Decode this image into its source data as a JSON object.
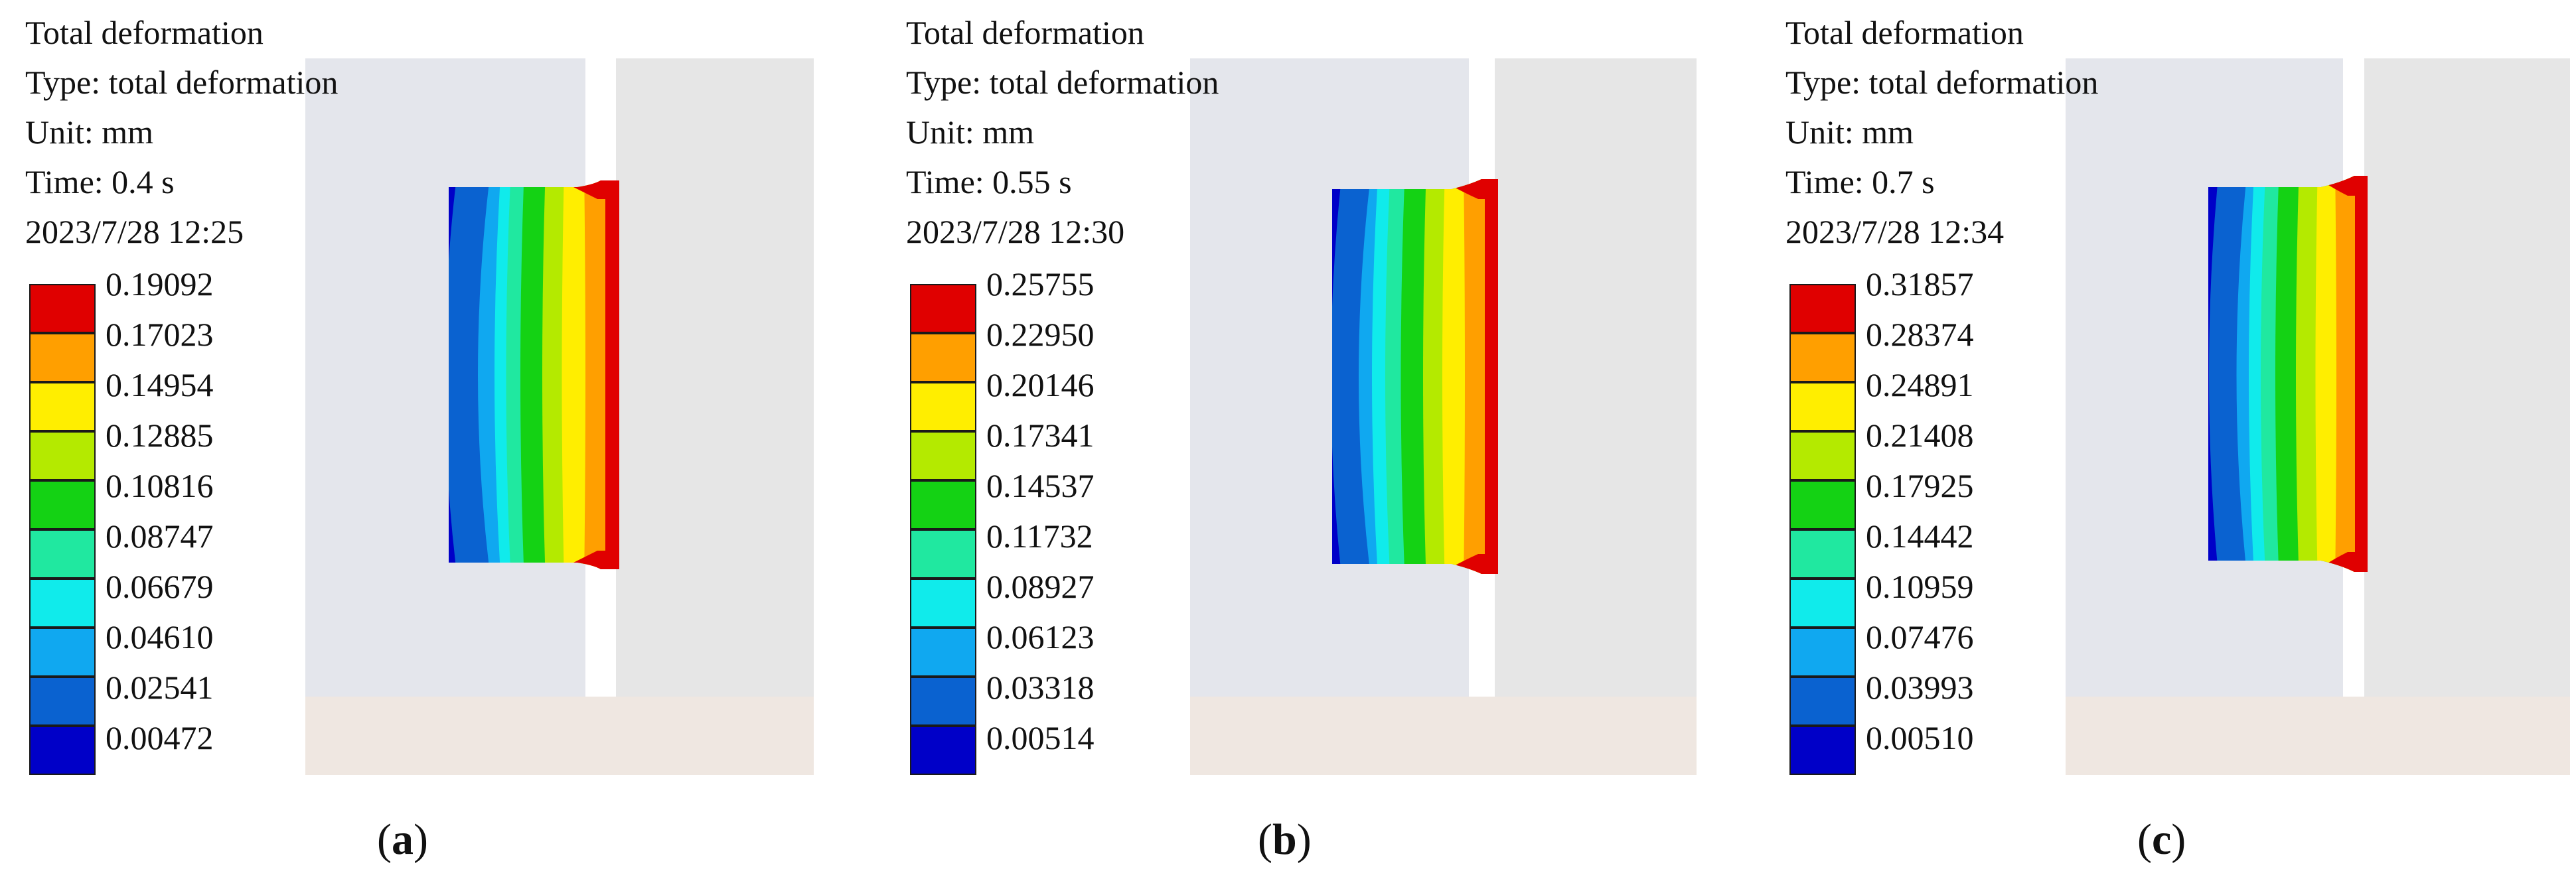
{
  "panels": [
    {
      "title": "Total deformation",
      "type": "Type: total deformation",
      "unit": "Unit: mm",
      "time": "Time: 0.4 s",
      "date": "2023/7/28  12:25",
      "legend": [
        "0.19092",
        "0.17023",
        "0.14954",
        "0.12885",
        "0.10816",
        "0.08747",
        "0.06679",
        "0.04610",
        "0.02541",
        "0.00472"
      ],
      "caption_open": "(",
      "caption_letter": "a",
      "caption_close": ")"
    },
    {
      "title": "Total deformation",
      "type": "Type: total deformation",
      "unit": "Unit: mm",
      "time": "Time: 0.55 s",
      "date": "2023/7/28  12:30",
      "legend": [
        "0.25755",
        "0.22950",
        "0.20146",
        "0.17341",
        "0.14537",
        "0.11732",
        "0.08927",
        "0.06123",
        "0.03318",
        "0.00514"
      ],
      "caption_open": "(",
      "caption_letter": "b",
      "caption_close": ")"
    },
    {
      "title": "Total deformation",
      "type": "Type: total deformation",
      "unit": "Unit: mm",
      "time": "Time: 0.7 s",
      "date": "2023/7/28  12:34",
      "legend": [
        "0.31857",
        "0.28374",
        "0.24891",
        "0.21408",
        "0.17925",
        "0.14442",
        "0.10959",
        "0.07476",
        "0.03993",
        "0.00510"
      ],
      "caption_open": "(",
      "caption_letter": "c",
      "caption_close": ")"
    }
  ],
  "colors": {
    "scale": [
      "#e00000",
      "#ff9f00",
      "#ffee00",
      "#b4ea00",
      "#14d214",
      "#20e8a0",
      "#10ebeb",
      "#10a8f0",
      "#0a62d0",
      "#0000c8"
    ],
    "background": "#ffffff",
    "slab_left": "#e4e6ec",
    "slab_right": "#e6e6e6",
    "base": "#efe7e1"
  }
}
